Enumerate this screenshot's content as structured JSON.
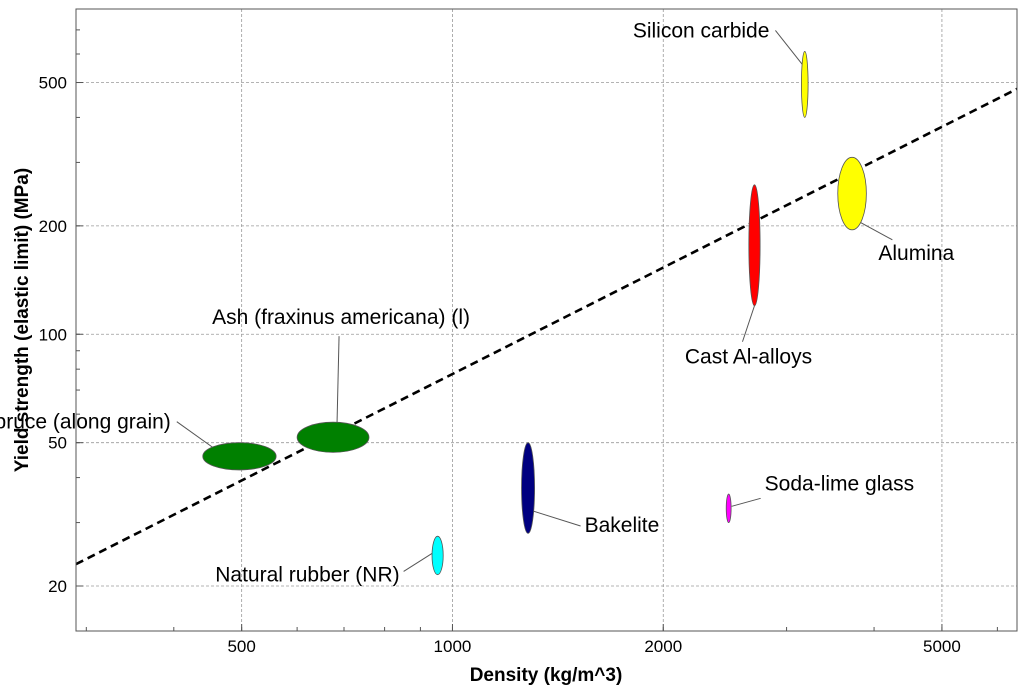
{
  "chart_data": {
    "type": "scatter",
    "title": "",
    "xlabel": "Density (kg/m^3)",
    "ylabel": "Yield strength (elastic limit) (MPa)",
    "xscale": "log",
    "yscale": "log",
    "xlim": [
      290,
      6400
    ],
    "ylim": [
      15,
      800
    ],
    "grid": true,
    "x_ticks": [
      {
        "value": 500,
        "label": "500"
      },
      {
        "value": 1000,
        "label": "1000"
      },
      {
        "value": 2000,
        "label": "2000"
      },
      {
        "value": 5000,
        "label": "5000"
      }
    ],
    "x_grid_values": [
      500,
      1000,
      2000,
      5000
    ],
    "y_ticks": [
      {
        "value": 20,
        "label": "20"
      },
      {
        "value": 50,
        "label": "50"
      },
      {
        "value": 100,
        "label": "100"
      },
      {
        "value": 200,
        "label": "200"
      },
      {
        "value": 500,
        "label": "500"
      }
    ],
    "y_grid_values": [
      20,
      50,
      100,
      200,
      500
    ],
    "materials": [
      {
        "name": "Silicon carbide",
        "color": "#ffff00",
        "x": [
          3150,
          3220
        ],
        "y": [
          400,
          610
        ],
        "label_side": "left-above"
      },
      {
        "name": "Alumina",
        "color": "#ffff00",
        "x": [
          3550,
          3900
        ],
        "y": [
          195,
          310
        ],
        "label_side": "right-below"
      },
      {
        "name": "Cast Al-alloys",
        "color": "#ff0000",
        "x": [
          2650,
          2750
        ],
        "y": [
          120,
          260
        ],
        "label_side": "below"
      },
      {
        "name": "Ash (fraxinus americana) (l)",
        "color": "#008000",
        "x": [
          600,
          760
        ],
        "y": [
          47,
          57
        ],
        "label_side": "above"
      },
      {
        "name": "Spruce (along grain)",
        "color": "#008000",
        "x": [
          440,
          560
        ],
        "y": [
          42,
          50
        ],
        "label_side": "left-above"
      },
      {
        "name": "Bakelite",
        "color": "#000080",
        "x": [
          1255,
          1310
        ],
        "y": [
          28,
          50
        ],
        "label_side": "right"
      },
      {
        "name": "Soda-lime glass",
        "color": "#ff00ff",
        "x": [
          2460,
          2500
        ],
        "y": [
          30,
          36
        ],
        "label_side": "right-above"
      },
      {
        "name": "Natural rubber (NR)",
        "color": "#00ffff",
        "x": [
          935,
          970
        ],
        "y": [
          21.5,
          27.5
        ],
        "label_side": "left"
      }
    ],
    "guide_line": {
      "style": "dashed",
      "color": "#000000",
      "points": [
        [
          290,
          23
        ],
        [
          6400,
          480
        ]
      ]
    }
  }
}
